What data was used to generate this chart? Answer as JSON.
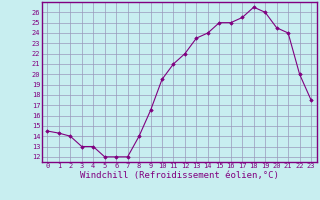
{
  "x": [
    0,
    1,
    2,
    3,
    4,
    5,
    6,
    7,
    8,
    9,
    10,
    11,
    12,
    13,
    14,
    15,
    16,
    17,
    18,
    19,
    20,
    21,
    22,
    23
  ],
  "y": [
    14.5,
    14.3,
    14.0,
    13.0,
    13.0,
    12.0,
    12.0,
    12.0,
    14.0,
    16.5,
    19.5,
    21.0,
    22.0,
    23.5,
    24.0,
    25.0,
    25.0,
    25.5,
    26.5,
    26.0,
    24.5,
    24.0,
    20.0,
    17.5
  ],
  "line_color": "#800080",
  "marker": "D",
  "marker_size": 1.8,
  "bg_color": "#c8eef0",
  "grid_color": "#9999bb",
  "xlabel": "Windchill (Refroidissement éolien,°C)",
  "xlabel_color": "#800080",
  "ylim": [
    11.5,
    27.0
  ],
  "xlim": [
    -0.5,
    23.5
  ],
  "yticks": [
    12,
    13,
    14,
    15,
    16,
    17,
    18,
    19,
    20,
    21,
    22,
    23,
    24,
    25,
    26
  ],
  "xticks": [
    0,
    1,
    2,
    3,
    4,
    5,
    6,
    7,
    8,
    9,
    10,
    11,
    12,
    13,
    14,
    15,
    16,
    17,
    18,
    19,
    20,
    21,
    22,
    23
  ],
  "tick_color": "#800080",
  "tick_fontsize": 5.0,
  "xlabel_fontsize": 6.5,
  "spine_color": "#800080"
}
